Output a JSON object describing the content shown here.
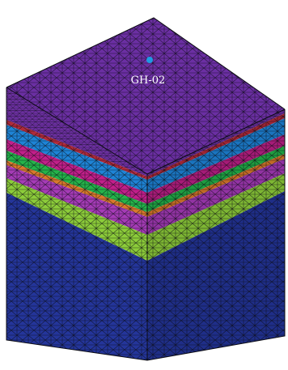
{
  "borehole": {
    "label": "GH-02",
    "marker_color": "#1e9be3"
  },
  "mesh": {
    "line_color": "#0b0b12",
    "layers_top_to_bottom": [
      {
        "name": "top-layer",
        "left_face": "#6a2f9e",
        "right_face": "#5e2a8e",
        "top_face": "#6b2fa3"
      },
      {
        "name": "thin-red-band",
        "left_face": "#b02a3a",
        "right_face": "#9d2432"
      },
      {
        "name": "blue-layer",
        "left_face": "#1e84d6",
        "right_face": "#1a74bf"
      },
      {
        "name": "magenta-layer",
        "left_face": "#c21f8a",
        "right_face": "#a61b77"
      },
      {
        "name": "green-layer",
        "left_face": "#24b44a",
        "right_face": "#1e9d40"
      },
      {
        "name": "orange-band",
        "left_face": "#d8792b",
        "right_face": "#c06a24"
      },
      {
        "name": "purple-layer",
        "left_face": "#a53bb6",
        "right_face": "#9233a3"
      },
      {
        "name": "lime-layer",
        "left_face": "#8ccc3a",
        "right_face": "#7db633"
      },
      {
        "name": "base-layer",
        "left_face": "#24359a",
        "right_face": "#1f2e88"
      }
    ]
  }
}
